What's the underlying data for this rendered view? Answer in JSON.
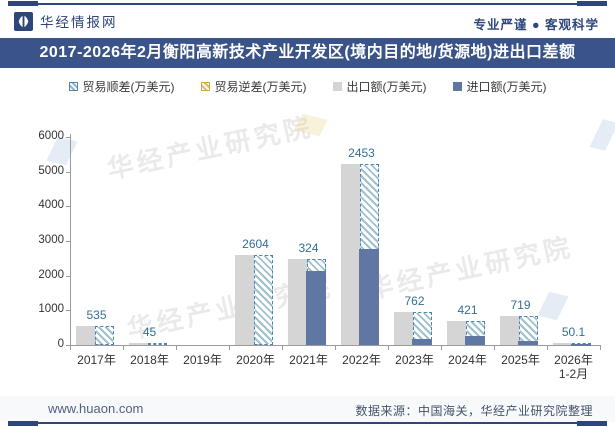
{
  "header": {
    "brand": "华经情报网",
    "tagline": "专业严谨 ● 客观科学",
    "title": "2017-2026年2月衡阳高新技术产业开发区(境内目的地/货源地)进出口差额"
  },
  "legend": [
    {
      "label": "贸易顺差(万美元)",
      "swatch": "hatch-blue"
    },
    {
      "label": "贸易逆差(万美元)",
      "swatch": "hatch-yellow"
    },
    {
      "label": "出口额(万美元)",
      "swatch": "solid-gray"
    },
    {
      "label": "进口额(万美元)",
      "swatch": "solid-blue"
    }
  ],
  "chart_data": {
    "type": "bar",
    "title": "2017-2026年2月衡阳高新技术产业开发区(境内目的地/货源地)进出口差额",
    "categories": [
      "2017年",
      "2018年",
      "2019年",
      "2020年",
      "2021年",
      "2022年",
      "2023年",
      "2024年",
      "2025年",
      "2026年\n1-2月"
    ],
    "series": [
      {
        "name": "出口额(万美元)",
        "role": "export",
        "color": "#D5D5D5",
        "values": [
          535,
          45,
          0,
          2604,
          2478,
          5223,
          960,
          701,
          850,
          55
        ]
      },
      {
        "name": "进口额(万美元)",
        "role": "import",
        "color": "#6076A3",
        "values": [
          0,
          0,
          0,
          0,
          2154,
          2770,
          198,
          280,
          131,
          4.9
        ]
      },
      {
        "name": "贸易顺差(万美元)",
        "role": "surplus",
        "style": "hatched",
        "values": [
          535,
          45,
          null,
          2604,
          324,
          2453,
          762,
          421,
          719,
          50.1
        ]
      }
    ],
    "value_labels": [
      "535",
      "45",
      "",
      "2604",
      "324",
      "2453",
      "762",
      "421",
      "719",
      "50.1"
    ],
    "xlabel": "",
    "ylabel": "",
    "ylim": [
      0,
      6000
    ],
    "y_ticks": [
      0,
      1000,
      2000,
      3000,
      4000,
      5000,
      6000
    ],
    "grid": false,
    "legend_position": "top"
  },
  "watermark": {
    "text": "华经产业研究院"
  },
  "footer": {
    "url": "www.huaon.com",
    "source": "数据来源：中国海关，华经产业研究院整理"
  },
  "colors": {
    "brand_navy": "#2E4679",
    "title_band": "#3A5489",
    "bar_export": "#D5D5D5",
    "bar_import": "#6076A3",
    "surplus_hatch": "#8FB8CB",
    "surplus_border": "#4C86AD",
    "deficit_hatch": "#E3C24C",
    "value_label": "#336F96",
    "axis": "#9B9B9B"
  }
}
